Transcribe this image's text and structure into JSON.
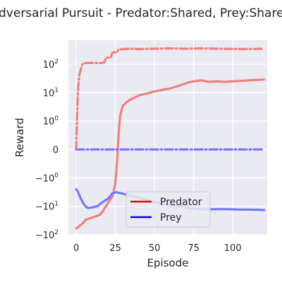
{
  "chart_data": {
    "type": "line",
    "title": "Adversarial Pursuit - Predator:Shared, Prey:Shared",
    "xlabel": "Episode",
    "ylabel": "Reward",
    "yscale": "symlog",
    "xlim": [
      -5,
      122
    ],
    "ylim": [
      -100,
      700
    ],
    "grid": true,
    "background": "#eaeaf2",
    "x_ticks": [
      {
        "value": 0,
        "label": "0"
      },
      {
        "value": 25,
        "label": "25"
      },
      {
        "value": 50,
        "label": "50"
      },
      {
        "value": 75,
        "label": "75"
      },
      {
        "value": 100,
        "label": "100"
      }
    ],
    "y_ticks": [
      {
        "value": 100,
        "label": "10²",
        "base": "10",
        "exp": "2",
        "neg": false
      },
      {
        "value": 10,
        "label": "10¹",
        "base": "10",
        "exp": "1",
        "neg": false
      },
      {
        "value": 1,
        "label": "10⁰",
        "base": "10",
        "exp": "0",
        "neg": false
      },
      {
        "value": 0,
        "label": "0",
        "base": "0",
        "exp": "",
        "neg": false
      },
      {
        "value": -1,
        "label": "−10⁰",
        "base": "10",
        "exp": "0",
        "neg": true
      },
      {
        "value": -10,
        "label": "−10¹",
        "base": "10",
        "exp": "1",
        "neg": true
      },
      {
        "value": -100,
        "label": "−10²",
        "base": "10",
        "exp": "2",
        "neg": true
      }
    ],
    "legend": {
      "placement": "lower-center",
      "entries": [
        {
          "name": "Predator",
          "color": "#ee0000"
        },
        {
          "name": "Prey",
          "color": "#0000ee"
        }
      ]
    },
    "series": [
      {
        "name": "Predator",
        "role": "solid",
        "color": "#f08080",
        "dash": false,
        "points": [
          [
            0,
            -60
          ],
          [
            1,
            -55
          ],
          [
            2,
            -50
          ],
          [
            3,
            -45
          ],
          [
            4,
            -40
          ],
          [
            5,
            -35
          ],
          [
            6,
            -30
          ],
          [
            8,
            -27
          ],
          [
            10,
            -25
          ],
          [
            12,
            -23
          ],
          [
            14,
            -21
          ],
          [
            15,
            -20
          ],
          [
            16,
            -17
          ],
          [
            17,
            -15
          ],
          [
            18,
            -12
          ],
          [
            19,
            -10
          ],
          [
            20,
            -8
          ],
          [
            21,
            -6.5
          ],
          [
            22,
            -5.5
          ],
          [
            23,
            -4.5
          ],
          [
            24,
            -3
          ],
          [
            25,
            -1.5
          ],
          [
            26,
            -0.5
          ],
          [
            27,
            0.5
          ],
          [
            28,
            1.5
          ],
          [
            29,
            2.5
          ],
          [
            30,
            3.5
          ],
          [
            32,
            4.5
          ],
          [
            34,
            5.5
          ],
          [
            36,
            6.2
          ],
          [
            38,
            7
          ],
          [
            40,
            8
          ],
          [
            42,
            8.5
          ],
          [
            44,
            9
          ],
          [
            46,
            9.5
          ],
          [
            48,
            10.2
          ],
          [
            50,
            11
          ],
          [
            55,
            12.5
          ],
          [
            60,
            14
          ],
          [
            65,
            17
          ],
          [
            70,
            21
          ],
          [
            72,
            23
          ],
          [
            75,
            25
          ],
          [
            80,
            27
          ],
          [
            85,
            24
          ],
          [
            90,
            25
          ],
          [
            95,
            24
          ],
          [
            100,
            25
          ],
          [
            105,
            26
          ],
          [
            110,
            27
          ],
          [
            115,
            28
          ],
          [
            120,
            29
          ]
        ]
      },
      {
        "name": "Predator",
        "role": "dash-dot",
        "color": "#f08080",
        "dash": true,
        "points": [
          [
            0,
            0
          ],
          [
            1,
            10
          ],
          [
            2,
            40
          ],
          [
            3,
            70
          ],
          [
            4,
            100
          ],
          [
            5,
            110
          ],
          [
            8,
            110
          ],
          [
            12,
            110
          ],
          [
            16,
            110
          ],
          [
            18,
            115
          ],
          [
            19,
            170
          ],
          [
            22,
            170
          ],
          [
            23,
            250
          ],
          [
            24,
            260
          ],
          [
            26,
            260
          ],
          [
            27,
            330
          ],
          [
            30,
            340
          ],
          [
            35,
            350
          ],
          [
            40,
            340
          ],
          [
            50,
            350
          ],
          [
            60,
            360
          ],
          [
            70,
            350
          ],
          [
            80,
            360
          ],
          [
            90,
            350
          ],
          [
            100,
            345
          ],
          [
            110,
            340
          ],
          [
            115,
            345
          ],
          [
            120,
            350
          ]
        ]
      },
      {
        "name": "Prey",
        "role": "solid",
        "color": "#7777ff",
        "dash": false,
        "points": [
          [
            0,
            -2.5
          ],
          [
            1,
            -3
          ],
          [
            2,
            -4
          ],
          [
            3,
            -5.5
          ],
          [
            4,
            -7
          ],
          [
            5,
            -8.5
          ],
          [
            6,
            -10
          ],
          [
            7,
            -11
          ],
          [
            8,
            -11.5
          ],
          [
            10,
            -11
          ],
          [
            12,
            -10.5
          ],
          [
            14,
            -9.5
          ],
          [
            15,
            -8.5
          ],
          [
            17,
            -7
          ],
          [
            19,
            -6
          ],
          [
            21,
            -5
          ],
          [
            23,
            -3.5
          ],
          [
            25,
            -3.2
          ],
          [
            27,
            -3.3
          ],
          [
            30,
            -3.6
          ],
          [
            33,
            -4
          ],
          [
            36,
            -4.5
          ],
          [
            40,
            -5
          ],
          [
            45,
            -6
          ],
          [
            50,
            -7
          ],
          [
            55,
            -8
          ],
          [
            60,
            -9
          ],
          [
            65,
            -10
          ],
          [
            70,
            -11
          ],
          [
            75,
            -12
          ],
          [
            80,
            -12.5
          ],
          [
            85,
            -12.8
          ],
          [
            90,
            -12.5
          ],
          [
            95,
            -12.6
          ],
          [
            100,
            -12.7
          ],
          [
            105,
            -13
          ],
          [
            110,
            -13
          ],
          [
            115,
            -13.2
          ],
          [
            120,
            -13.5
          ]
        ]
      },
      {
        "name": "Prey",
        "role": "dash-dot",
        "color": "#7777ff",
        "dash": true,
        "points": [
          [
            0,
            0
          ],
          [
            120,
            0
          ]
        ]
      }
    ]
  }
}
